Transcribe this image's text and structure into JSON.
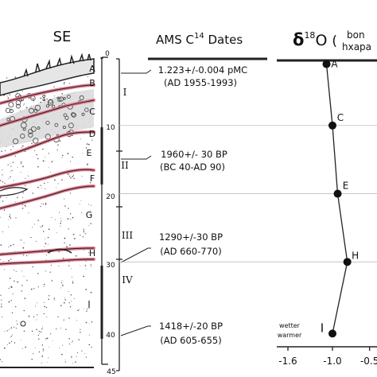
{
  "section": {
    "heading": "SE",
    "layer_letters": [
      "A",
      "B",
      "C",
      "D",
      "E",
      "F",
      "G",
      "H",
      "I"
    ],
    "depth_ticks": [
      "0",
      "10",
      "20",
      "30",
      "40",
      "45"
    ],
    "units": [
      "I",
      "II",
      "III",
      "IV"
    ]
  },
  "dates": {
    "heading_prefix": "AMS C",
    "heading_sup": "14",
    "heading_suffix": " Dates",
    "entries": [
      {
        "line1": "1.223+/-0.004 pMC",
        "line2": "(AD 1955-1993)"
      },
      {
        "line1": "1960+/- 30 BP",
        "line2": "(BC 40-AD 90)"
      },
      {
        "line1": "1290+/-30 BP",
        "line2": "(AD 660-770)"
      },
      {
        "line1": "1418+/-20 BP",
        "line2": "(AD 605-655)"
      }
    ]
  },
  "isotope": {
    "heading_delta": "δ",
    "heading_sup": "18",
    "heading_o": "O",
    "heading_paren": "(",
    "heading_word1": "bon",
    "heading_word2": "hxapa",
    "x_ticks": [
      "-1.6",
      "-1.0",
      "-0.5"
    ],
    "annotation_line1": "wetter",
    "annotation_line2": "warmer"
  },
  "chart_data": {
    "type": "line",
    "title": "",
    "xlabel": "",
    "ylabel": "",
    "x_ticks": [
      -1.6,
      -1.0,
      -0.5
    ],
    "xlim": [
      -1.75,
      -0.4
    ],
    "ylim": [
      0,
      45
    ],
    "y_reversed": true,
    "series": [
      {
        "points": [
          {
            "label": "A",
            "x": -1.08,
            "depth": 1
          },
          {
            "label": "C",
            "x": -1.0,
            "depth": 10
          },
          {
            "label": "E",
            "x": -0.93,
            "depth": 20
          },
          {
            "label": "H",
            "x": -0.8,
            "depth": 30
          },
          {
            "label": "I",
            "x": -1.0,
            "depth": 40.5
          }
        ]
      }
    ]
  }
}
